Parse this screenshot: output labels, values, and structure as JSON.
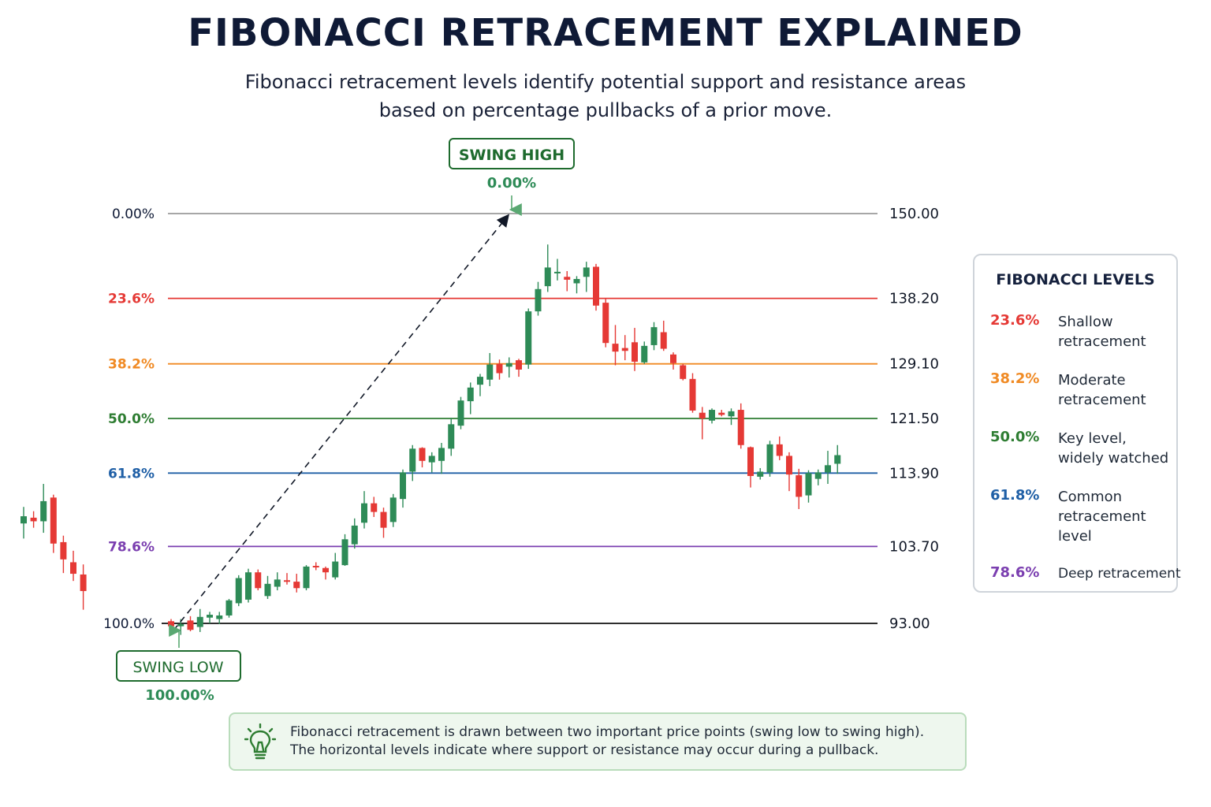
{
  "title": "FIBONACCI RETRACEMENT EXPLAINED",
  "subtitle_line1": "Fibonacci retracement levels identify potential support and resistance areas",
  "subtitle_line2": "based on percentage pullbacks of a prior move.",
  "swing_high": {
    "label": "SWING HIGH",
    "pct": "0.00%"
  },
  "swing_low": {
    "label": "SWING LOW",
    "pct": "100.00%"
  },
  "legend": {
    "title": "FIBONACCI LEVELS",
    "items": [
      {
        "pct": "23.6%",
        "desc": "Shallow retracement",
        "color": "#e53935"
      },
      {
        "pct": "38.2%",
        "desc": "Moderate retracement",
        "color": "#f08a24"
      },
      {
        "pct": "50.0%",
        "desc": "Key level, widely watched",
        "color": "#2e7d32"
      },
      {
        "pct": "61.8%",
        "desc": "Common retracement level",
        "color": "#1f5fa6"
      },
      {
        "pct": "78.6%",
        "desc": "Deep retracement",
        "color": "#7b3fb0"
      }
    ]
  },
  "note": {
    "icon": "lightbulb-icon",
    "line1": "Fibonacci retracement is drawn between two important price points (swing low to swing high).",
    "line2": "The horizontal levels indicate where support or resistance may occur during a pullback."
  },
  "colors": {
    "up": "#2e8b57",
    "down": "#e53935",
    "swing_green": "#1e6b2e",
    "dark_text": "#0f1a36"
  },
  "chart_data": {
    "type": "candlestick",
    "ylim": [
      93,
      150
    ],
    "levels": [
      {
        "pct": "0.00%",
        "price": "150.00",
        "value": 150.0,
        "color": "#8a8a8a"
      },
      {
        "pct": "23.6%",
        "price": "138.20",
        "value": 138.2,
        "color": "#e53935"
      },
      {
        "pct": "38.2%",
        "price": "129.10",
        "value": 129.1,
        "color": "#f08a24"
      },
      {
        "pct": "50.0%",
        "price": "121.50",
        "value": 121.5,
        "color": "#2e7d32"
      },
      {
        "pct": "61.8%",
        "price": "113.90",
        "value": 113.9,
        "color": "#1f5fa6"
      },
      {
        "pct": "78.6%",
        "price": "103.70",
        "value": 103.7,
        "color": "#7b3fb0"
      },
      {
        "pct": "100.0%",
        "price": "93.00",
        "value": 93.0,
        "color": "#111111"
      }
    ],
    "swing_low_value": 93.0,
    "swing_high_value": 150.0,
    "lead_in_candles": [
      {
        "o": 106.9,
        "h": 109.2,
        "l": 104.8,
        "c": 107.9
      },
      {
        "o": 107.7,
        "h": 108.6,
        "l": 106.3,
        "c": 107.2
      },
      {
        "o": 107.2,
        "h": 112.4,
        "l": 105.6,
        "c": 110.0
      },
      {
        "o": 110.5,
        "h": 110.9,
        "l": 102.8,
        "c": 104.1
      },
      {
        "o": 104.3,
        "h": 105.2,
        "l": 100.0,
        "c": 101.9
      },
      {
        "o": 101.5,
        "h": 103.1,
        "l": 98.9,
        "c": 99.9
      },
      {
        "o": 99.8,
        "h": 101.2,
        "l": 94.9,
        "c": 97.5
      }
    ],
    "candles": [
      {
        "o": 93.3,
        "h": 93.6,
        "l": 92.0,
        "c": 92.6
      },
      {
        "o": 92.6,
        "h": 93.6,
        "l": 91.4,
        "c": 92.9
      },
      {
        "o": 93.4,
        "h": 94.0,
        "l": 91.9,
        "c": 92.1
      },
      {
        "o": 92.5,
        "h": 95.0,
        "l": 91.8,
        "c": 93.9
      },
      {
        "o": 93.8,
        "h": 94.6,
        "l": 93.0,
        "c": 94.2
      },
      {
        "o": 93.6,
        "h": 94.6,
        "l": 92.9,
        "c": 94.1
      },
      {
        "o": 94.1,
        "h": 96.4,
        "l": 93.8,
        "c": 96.2
      },
      {
        "o": 95.8,
        "h": 99.7,
        "l": 95.4,
        "c": 99.3
      },
      {
        "o": 96.3,
        "h": 100.6,
        "l": 95.9,
        "c": 100.1
      },
      {
        "o": 100.1,
        "h": 100.5,
        "l": 97.6,
        "c": 97.9
      },
      {
        "o": 96.8,
        "h": 99.6,
        "l": 96.4,
        "c": 98.5
      },
      {
        "o": 98.1,
        "h": 100.1,
        "l": 97.6,
        "c": 99.1
      },
      {
        "o": 99.0,
        "h": 100.0,
        "l": 98.4,
        "c": 98.8
      },
      {
        "o": 98.8,
        "h": 99.9,
        "l": 97.3,
        "c": 97.9
      },
      {
        "o": 97.9,
        "h": 101.1,
        "l": 97.6,
        "c": 100.9
      },
      {
        "o": 101.0,
        "h": 101.5,
        "l": 100.4,
        "c": 100.8
      },
      {
        "o": 100.7,
        "h": 100.9,
        "l": 99.1,
        "c": 100.1
      },
      {
        "o": 99.4,
        "h": 102.8,
        "l": 99.1,
        "c": 101.6
      },
      {
        "o": 101.1,
        "h": 105.4,
        "l": 101.0,
        "c": 104.7
      },
      {
        "o": 104.0,
        "h": 107.6,
        "l": 103.4,
        "c": 106.6
      },
      {
        "o": 107.0,
        "h": 111.4,
        "l": 106.2,
        "c": 109.7
      },
      {
        "o": 109.7,
        "h": 110.6,
        "l": 107.8,
        "c": 108.5
      },
      {
        "o": 108.5,
        "h": 109.1,
        "l": 104.9,
        "c": 106.3
      },
      {
        "o": 107.1,
        "h": 111.0,
        "l": 106.4,
        "c": 110.5
      },
      {
        "o": 110.3,
        "h": 114.4,
        "l": 109.1,
        "c": 114.0
      },
      {
        "o": 114.1,
        "h": 117.8,
        "l": 112.8,
        "c": 117.3
      },
      {
        "o": 117.4,
        "h": 117.5,
        "l": 114.7,
        "c": 115.6
      },
      {
        "o": 115.4,
        "h": 116.8,
        "l": 114.0,
        "c": 116.3
      },
      {
        "o": 115.6,
        "h": 118.1,
        "l": 113.8,
        "c": 117.4
      },
      {
        "o": 117.3,
        "h": 121.6,
        "l": 116.3,
        "c": 120.7
      },
      {
        "o": 120.5,
        "h": 124.5,
        "l": 120.0,
        "c": 124.0
      },
      {
        "o": 123.9,
        "h": 126.5,
        "l": 122.1,
        "c": 125.8
      },
      {
        "o": 126.2,
        "h": 127.7,
        "l": 124.6,
        "c": 127.3
      },
      {
        "o": 126.9,
        "h": 130.6,
        "l": 126.0,
        "c": 129.0
      },
      {
        "o": 129.1,
        "h": 129.7,
        "l": 126.9,
        "c": 127.8
      },
      {
        "o": 128.7,
        "h": 130.0,
        "l": 127.2,
        "c": 129.2
      },
      {
        "o": 129.6,
        "h": 129.8,
        "l": 127.3,
        "c": 128.3
      },
      {
        "o": 129.0,
        "h": 136.8,
        "l": 128.4,
        "c": 136.4
      },
      {
        "o": 136.4,
        "h": 140.5,
        "l": 135.8,
        "c": 139.5
      },
      {
        "o": 139.9,
        "h": 145.7,
        "l": 139.1,
        "c": 142.5
      },
      {
        "o": 141.9,
        "h": 143.7,
        "l": 140.7,
        "c": 141.9
      },
      {
        "o": 141.2,
        "h": 142.0,
        "l": 139.2,
        "c": 140.8
      },
      {
        "o": 140.3,
        "h": 141.3,
        "l": 138.9,
        "c": 140.9
      },
      {
        "o": 141.2,
        "h": 143.3,
        "l": 139.1,
        "c": 142.5
      },
      {
        "o": 142.6,
        "h": 143.0,
        "l": 136.5,
        "c": 137.2
      },
      {
        "o": 137.6,
        "h": 138.2,
        "l": 131.4,
        "c": 132.0
      },
      {
        "o": 131.9,
        "h": 134.5,
        "l": 128.9,
        "c": 130.8
      },
      {
        "o": 131.3,
        "h": 133.1,
        "l": 129.6,
        "c": 130.9
      },
      {
        "o": 132.1,
        "h": 134.1,
        "l": 128.1,
        "c": 129.4
      },
      {
        "o": 129.3,
        "h": 132.2,
        "l": 129.1,
        "c": 131.6
      },
      {
        "o": 131.7,
        "h": 134.9,
        "l": 131.0,
        "c": 134.2
      },
      {
        "o": 133.5,
        "h": 135.1,
        "l": 130.9,
        "c": 131.2
      },
      {
        "o": 130.4,
        "h": 130.7,
        "l": 128.3,
        "c": 129.2
      },
      {
        "o": 128.9,
        "h": 129.1,
        "l": 126.8,
        "c": 127.0
      },
      {
        "o": 127.0,
        "h": 127.8,
        "l": 122.3,
        "c": 122.6
      },
      {
        "o": 122.3,
        "h": 123.1,
        "l": 118.6,
        "c": 121.5
      },
      {
        "o": 121.2,
        "h": 122.9,
        "l": 120.8,
        "c": 122.7
      },
      {
        "o": 122.3,
        "h": 122.7,
        "l": 121.8,
        "c": 122.0
      },
      {
        "o": 121.8,
        "h": 122.9,
        "l": 120.6,
        "c": 122.5
      },
      {
        "o": 122.7,
        "h": 123.6,
        "l": 117.3,
        "c": 117.8
      },
      {
        "o": 117.5,
        "h": 117.6,
        "l": 111.9,
        "c": 113.5
      },
      {
        "o": 113.4,
        "h": 114.6,
        "l": 113.0,
        "c": 114.1
      },
      {
        "o": 114.0,
        "h": 118.4,
        "l": 113.4,
        "c": 117.9
      },
      {
        "o": 117.9,
        "h": 119.0,
        "l": 115.7,
        "c": 116.3
      },
      {
        "o": 116.3,
        "h": 116.8,
        "l": 111.4,
        "c": 113.7
      },
      {
        "o": 113.6,
        "h": 114.5,
        "l": 108.9,
        "c": 110.6
      },
      {
        "o": 110.8,
        "h": 114.3,
        "l": 109.8,
        "c": 113.9
      },
      {
        "o": 113.1,
        "h": 114.4,
        "l": 112.2,
        "c": 114.0
      },
      {
        "o": 114.0,
        "h": 117.0,
        "l": 112.4,
        "c": 115.0
      },
      {
        "o": 115.2,
        "h": 117.8,
        "l": 113.8,
        "c": 116.4
      }
    ]
  }
}
